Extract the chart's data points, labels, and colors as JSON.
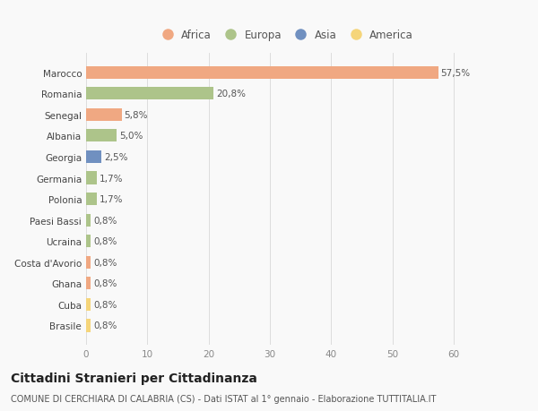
{
  "categories": [
    "Brasile",
    "Cuba",
    "Ghana",
    "Costa d'Avorio",
    "Ucraina",
    "Paesi Bassi",
    "Polonia",
    "Germania",
    "Georgia",
    "Albania",
    "Senegal",
    "Romania",
    "Marocco"
  ],
  "values": [
    0.8,
    0.8,
    0.8,
    0.8,
    0.8,
    0.8,
    1.7,
    1.7,
    2.5,
    5.0,
    5.8,
    20.8,
    57.5
  ],
  "labels": [
    "0,8%",
    "0,8%",
    "0,8%",
    "0,8%",
    "0,8%",
    "0,8%",
    "1,7%",
    "1,7%",
    "2,5%",
    "5,0%",
    "5,8%",
    "20,8%",
    "57,5%"
  ],
  "colors": [
    "#f5d57a",
    "#f5d57a",
    "#f0a882",
    "#f0a882",
    "#adc48a",
    "#adc48a",
    "#adc48a",
    "#adc48a",
    "#7090c0",
    "#adc48a",
    "#f0a882",
    "#adc48a",
    "#f0a882"
  ],
  "legend_labels": [
    "Africa",
    "Europa",
    "Asia",
    "America"
  ],
  "legend_colors": [
    "#f0a882",
    "#adc48a",
    "#7090c0",
    "#f5d57a"
  ],
  "title": "Cittadini Stranieri per Cittadinanza",
  "subtitle": "COMUNE DI CERCHIARA DI CALABRIA (CS) - Dati ISTAT al 1° gennaio - Elaborazione TUTTITALIA.IT",
  "xlim": [
    0,
    65
  ],
  "xticks": [
    0,
    10,
    20,
    30,
    40,
    50,
    60
  ],
  "background_color": "#f9f9f9",
  "bar_height": 0.6,
  "title_fontsize": 10,
  "subtitle_fontsize": 7,
  "label_fontsize": 7.5,
  "tick_fontsize": 7.5,
  "legend_fontsize": 8.5
}
